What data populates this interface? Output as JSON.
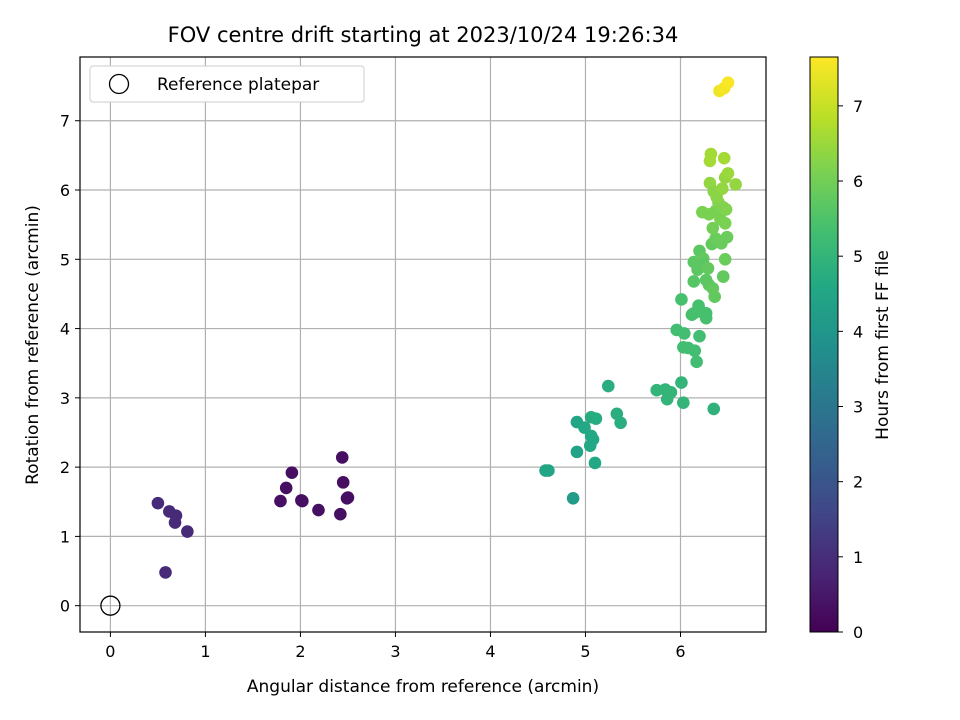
{
  "chart_data": {
    "type": "scatter",
    "title": "FOV centre drift starting at 2023/10/24 19:26:34",
    "xlabel": "Angular distance from reference (arcmin)",
    "ylabel": "Rotation from reference (arcmin)",
    "xlim": [
      -0.32,
      6.9
    ],
    "ylim": [
      -0.38,
      7.92
    ],
    "xticks": [
      0,
      1,
      2,
      3,
      4,
      5,
      6
    ],
    "yticks": [
      0,
      1,
      2,
      3,
      4,
      5,
      6,
      7
    ],
    "grid": true,
    "legend": {
      "placement": "upper-left",
      "entries": [
        "Reference platepar"
      ]
    },
    "reference_point": {
      "x": 0,
      "y": 0
    },
    "colorbar": {
      "label": "Hours from first FF file",
      "range": [
        0,
        7.65
      ],
      "ticks": [
        0,
        1,
        2,
        3,
        4,
        5,
        6,
        7
      ],
      "colormap": "viridis"
    },
    "points": [
      {
        "x": 0.5,
        "y": 1.48,
        "t": 0.9
      },
      {
        "x": 0.62,
        "y": 1.36,
        "t": 0.9
      },
      {
        "x": 0.69,
        "y": 1.3,
        "t": 0.9
      },
      {
        "x": 0.68,
        "y": 1.2,
        "t": 0.9
      },
      {
        "x": 0.81,
        "y": 1.07,
        "t": 0.9
      },
      {
        "x": 0.58,
        "y": 0.48,
        "t": 0.9
      },
      {
        "x": 1.79,
        "y": 1.51,
        "t": 0.3
      },
      {
        "x": 1.85,
        "y": 1.7,
        "t": 0.3
      },
      {
        "x": 1.91,
        "y": 1.92,
        "t": 0.3
      },
      {
        "x": 2.01,
        "y": 1.52,
        "t": 0.3
      },
      {
        "x": 2.02,
        "y": 1.51,
        "t": 0.3
      },
      {
        "x": 2.19,
        "y": 1.38,
        "t": 0.3
      },
      {
        "x": 2.42,
        "y": 1.32,
        "t": 0.3
      },
      {
        "x": 2.44,
        "y": 2.14,
        "t": 0.3
      },
      {
        "x": 2.45,
        "y": 1.78,
        "t": 0.3
      },
      {
        "x": 2.5,
        "y": 1.56,
        "t": 0.3
      },
      {
        "x": 2.49,
        "y": 1.55,
        "t": 0.3
      },
      {
        "x": 4.58,
        "y": 1.95,
        "t": 4.5
      },
      {
        "x": 4.61,
        "y": 1.95,
        "t": 4.5
      },
      {
        "x": 4.87,
        "y": 1.55,
        "t": 4.2
      },
      {
        "x": 4.91,
        "y": 2.22,
        "t": 4.4
      },
      {
        "x": 4.91,
        "y": 2.65,
        "t": 4.5
      },
      {
        "x": 4.99,
        "y": 2.57,
        "t": 4.6
      },
      {
        "x": 5.05,
        "y": 2.31,
        "t": 4.6
      },
      {
        "x": 5.06,
        "y": 2.45,
        "t": 4.6
      },
      {
        "x": 5.08,
        "y": 2.4,
        "t": 4.6
      },
      {
        "x": 5.06,
        "y": 2.72,
        "t": 4.7
      },
      {
        "x": 5.11,
        "y": 2.7,
        "t": 4.7
      },
      {
        "x": 5.1,
        "y": 2.06,
        "t": 4.6
      },
      {
        "x": 5.24,
        "y": 3.17,
        "t": 4.8
      },
      {
        "x": 5.33,
        "y": 2.77,
        "t": 4.8
      },
      {
        "x": 5.37,
        "y": 2.64,
        "t": 4.8
      },
      {
        "x": 5.75,
        "y": 3.11,
        "t": 5.0
      },
      {
        "x": 5.84,
        "y": 3.12,
        "t": 5.0
      },
      {
        "x": 5.86,
        "y": 2.98,
        "t": 5.0
      },
      {
        "x": 5.9,
        "y": 3.08,
        "t": 5.0
      },
      {
        "x": 6.01,
        "y": 3.22,
        "t": 5.0
      },
      {
        "x": 6.03,
        "y": 2.93,
        "t": 5.0
      },
      {
        "x": 6.35,
        "y": 2.84,
        "t": 4.9
      },
      {
        "x": 5.96,
        "y": 3.98,
        "t": 5.3
      },
      {
        "x": 6.01,
        "y": 4.42,
        "t": 5.4
      },
      {
        "x": 6.04,
        "y": 3.93,
        "t": 5.3
      },
      {
        "x": 6.03,
        "y": 3.73,
        "t": 5.3
      },
      {
        "x": 6.08,
        "y": 3.72,
        "t": 5.3
      },
      {
        "x": 6.12,
        "y": 4.2,
        "t": 5.4
      },
      {
        "x": 6.14,
        "y": 4.22,
        "t": 5.4
      },
      {
        "x": 6.15,
        "y": 3.68,
        "t": 5.3
      },
      {
        "x": 6.17,
        "y": 3.52,
        "t": 5.3
      },
      {
        "x": 6.19,
        "y": 4.33,
        "t": 5.4
      },
      {
        "x": 6.2,
        "y": 3.89,
        "t": 5.3
      },
      {
        "x": 6.22,
        "y": 4.24,
        "t": 5.4
      },
      {
        "x": 6.27,
        "y": 4.22,
        "t": 5.4
      },
      {
        "x": 6.27,
        "y": 4.15,
        "t": 5.4
      },
      {
        "x": 6.14,
        "y": 4.68,
        "t": 5.6
      },
      {
        "x": 6.14,
        "y": 4.96,
        "t": 5.7
      },
      {
        "x": 6.18,
        "y": 4.85,
        "t": 5.7
      },
      {
        "x": 6.2,
        "y": 5.12,
        "t": 5.7
      },
      {
        "x": 6.24,
        "y": 5.01,
        "t": 5.8
      },
      {
        "x": 6.24,
        "y": 4.93,
        "t": 5.7
      },
      {
        "x": 6.27,
        "y": 4.7,
        "t": 5.7
      },
      {
        "x": 6.29,
        "y": 4.87,
        "t": 5.8
      },
      {
        "x": 6.3,
        "y": 4.63,
        "t": 5.7
      },
      {
        "x": 6.33,
        "y": 5.22,
        "t": 5.8
      },
      {
        "x": 6.34,
        "y": 4.58,
        "t": 5.8
      },
      {
        "x": 6.36,
        "y": 4.46,
        "t": 5.8
      },
      {
        "x": 6.37,
        "y": 5.3,
        "t": 5.9
      },
      {
        "x": 6.43,
        "y": 5.23,
        "t": 5.9
      },
      {
        "x": 6.45,
        "y": 4.75,
        "t": 5.8
      },
      {
        "x": 6.47,
        "y": 5.0,
        "t": 5.9
      },
      {
        "x": 6.49,
        "y": 5.32,
        "t": 5.9
      },
      {
        "x": 6.23,
        "y": 5.68,
        "t": 6.1
      },
      {
        "x": 6.3,
        "y": 5.65,
        "t": 6.1
      },
      {
        "x": 6.34,
        "y": 5.45,
        "t": 6.0
      },
      {
        "x": 6.37,
        "y": 5.7,
        "t": 6.1
      },
      {
        "x": 6.4,
        "y": 5.82,
        "t": 6.2
      },
      {
        "x": 6.42,
        "y": 5.58,
        "t": 6.1
      },
      {
        "x": 6.45,
        "y": 5.75,
        "t": 6.2
      },
      {
        "x": 6.47,
        "y": 5.52,
        "t": 6.1
      },
      {
        "x": 6.48,
        "y": 5.72,
        "t": 6.2
      },
      {
        "x": 6.31,
        "y": 6.1,
        "t": 6.4
      },
      {
        "x": 6.35,
        "y": 5.98,
        "t": 6.3
      },
      {
        "x": 6.38,
        "y": 5.9,
        "t": 6.3
      },
      {
        "x": 6.44,
        "y": 6.02,
        "t": 6.4
      },
      {
        "x": 6.47,
        "y": 6.18,
        "t": 6.4
      },
      {
        "x": 6.5,
        "y": 6.24,
        "t": 6.5
      },
      {
        "x": 6.58,
        "y": 6.08,
        "t": 6.4
      },
      {
        "x": 6.31,
        "y": 6.42,
        "t": 6.6
      },
      {
        "x": 6.32,
        "y": 6.52,
        "t": 6.6
      },
      {
        "x": 6.46,
        "y": 6.46,
        "t": 6.6
      },
      {
        "x": 6.41,
        "y": 7.43,
        "t": 7.5
      },
      {
        "x": 6.46,
        "y": 7.47,
        "t": 7.55
      },
      {
        "x": 6.5,
        "y": 7.55,
        "t": 7.6
      }
    ]
  }
}
